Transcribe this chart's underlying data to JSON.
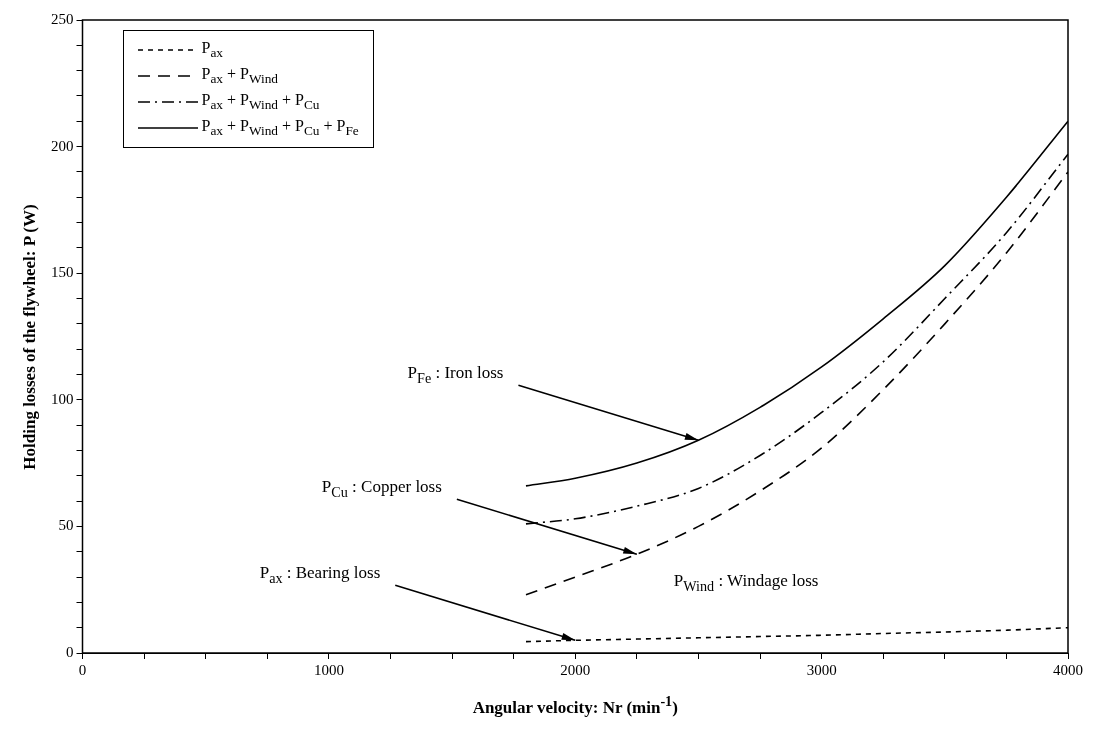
{
  "chart_data": {
    "type": "line",
    "xlabel": "Angular velocity: Nr (min$^{-1}$)",
    "ylabel": "Holding losses of the flywheel: P (W)",
    "xlim": [
      0,
      4000
    ],
    "ylim": [
      0,
      250
    ],
    "xticks": [
      0,
      {
        "value": 250,
        "label": null
      },
      {
        "value": 500,
        "label": null
      },
      {
        "value": 750,
        "label": null
      },
      1000,
      {
        "value": 1250,
        "label": null
      },
      {
        "value": 1500,
        "label": null
      },
      {
        "value": 1750,
        "label": null
      },
      2000,
      {
        "value": 2250,
        "label": null
      },
      {
        "value": 2500,
        "label": null
      },
      {
        "value": 2750,
        "label": null
      },
      3000,
      {
        "value": 3250,
        "label": null
      },
      {
        "value": 3500,
        "label": null
      },
      {
        "value": 3750,
        "label": null
      },
      4000
    ],
    "yticks": [
      0,
      {
        "value": 10,
        "label": null
      },
      {
        "value": 20,
        "label": null
      },
      {
        "value": 30,
        "label": null
      },
      {
        "value": 40,
        "label": null
      },
      50,
      {
        "value": 60,
        "label": null
      },
      {
        "value": 70,
        "label": null
      },
      {
        "value": 80,
        "label": null
      },
      {
        "value": 90,
        "label": null
      },
      100,
      {
        "value": 110,
        "label": null
      },
      {
        "value": 120,
        "label": null
      },
      {
        "value": 130,
        "label": null
      },
      {
        "value": 140,
        "label": null
      },
      150,
      {
        "value": 160,
        "label": null
      },
      {
        "value": 170,
        "label": null
      },
      {
        "value": 180,
        "label": null
      },
      {
        "value": 190,
        "label": null
      },
      200,
      {
        "value": 210,
        "label": null
      },
      {
        "value": 220,
        "label": null
      },
      {
        "value": 230,
        "label": null
      },
      {
        "value": 240,
        "label": null
      },
      250
    ],
    "grid": false,
    "legend": "top left",
    "x": [
      1800,
      2000,
      2250,
      2500,
      2750,
      3000,
      3250,
      3500,
      3750,
      4000
    ],
    "series": [
      {
        "name": "P$_{ax}$",
        "color": "#000000",
        "line_style": "dotted",
        "values": [
          4.5,
          5,
          5.5,
          6,
          6.5,
          7,
          7.7,
          8.3,
          9,
          10
        ]
      },
      {
        "name": "P$_{ax}$ + P$_{Wind}$",
        "color": "#000000",
        "line_style": "dashed",
        "values": [
          23,
          30,
          39,
          50,
          64,
          81,
          104,
          130,
          158,
          190
        ]
      },
      {
        "name": "P$_{ax}$ + P$_{Wind}$ + P$_{Cu}$",
        "color": "#000000",
        "line_style": "dashdot",
        "values": [
          51,
          53,
          58,
          65,
          78,
          95,
          115,
          140,
          166,
          197
        ]
      },
      {
        "name": "P$_{ax}$ + P$_{Wind}$ + P$_{Cu}$ + P$_{Fe}$",
        "color": "#000000",
        "line_style": "solid",
        "values": [
          66,
          69,
          75,
          84,
          97,
          113,
          132,
          153,
          180,
          210
        ]
      }
    ],
    "annotations": [
      {
        "text": "P$_{Fe}$ : Iron loss",
        "x": 2500,
        "y": 84
      },
      {
        "text": "P$_{Cu}$ : Copper loss",
        "x": 2250,
        "y": 39
      },
      {
        "text": "P$_{ax}$ : Bearing loss",
        "x": 2000,
        "y": 5
      },
      "P$_{Wind}$ : Windage loss"
    ]
  }
}
